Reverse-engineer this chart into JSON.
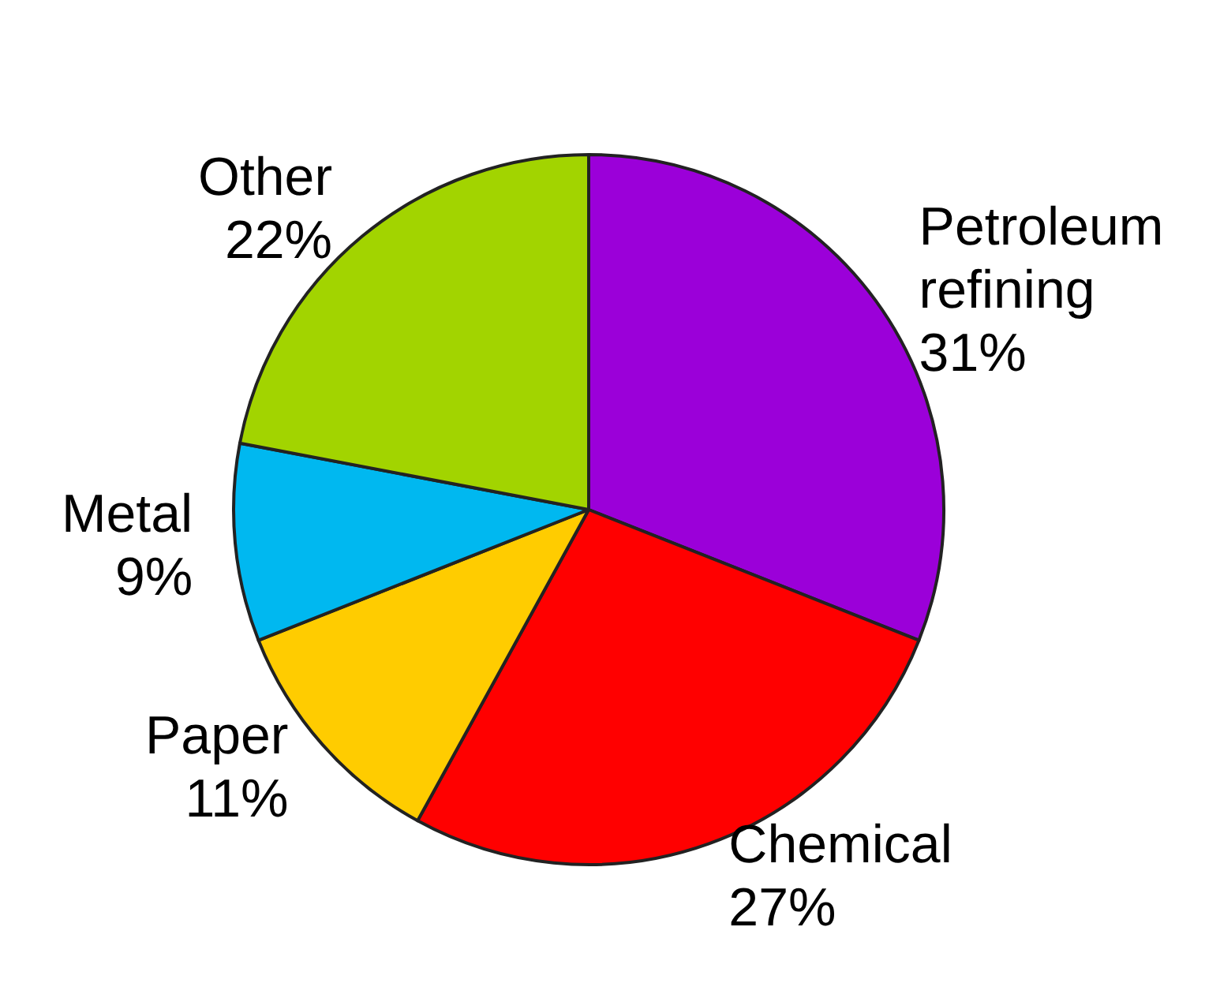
{
  "chart_data": {
    "type": "pie",
    "categories": [
      "Petroleum refining",
      "Chemical",
      "Paper",
      "Metal",
      "Other"
    ],
    "values": [
      31,
      27,
      11,
      9,
      22
    ],
    "value_labels": [
      "31%",
      "27%",
      "11%",
      "9%",
      "22%"
    ],
    "colors": [
      "#9b00d9",
      "#ff0000",
      "#ffcc00",
      "#00b8f0",
      "#a2d400"
    ]
  }
}
